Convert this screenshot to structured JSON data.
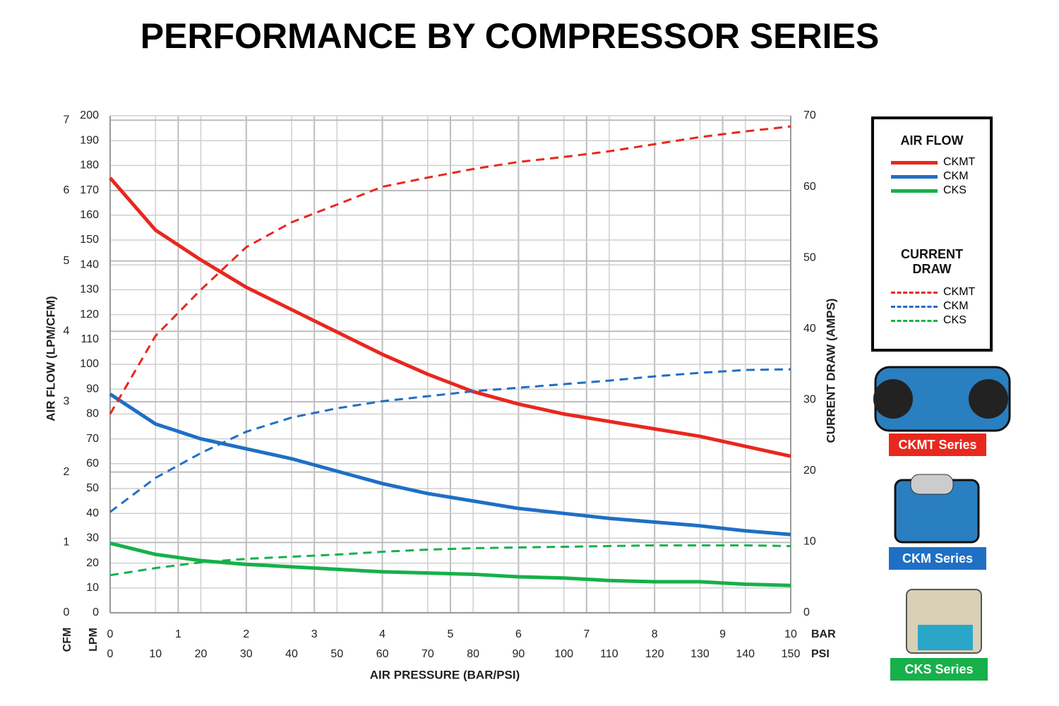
{
  "chart_data": {
    "type": "line",
    "title": "PERFORMANCE BY COMPRESSOR SERIES",
    "y_label": "AIR FLOW (LPM/CFM)",
    "y2_label": "CURRENT DRAW (AMPS)",
    "x_label": "AIR PRESSURE (BAR/PSI)",
    "axis_units": {
      "cfm": "CFM",
      "lpm": "LPM",
      "bar": "BAR",
      "psi": "PSI"
    },
    "x": [
      0,
      10,
      20,
      30,
      40,
      50,
      60,
      70,
      80,
      90,
      100,
      110,
      120,
      130,
      140,
      150
    ],
    "xlim": [
      0,
      150
    ],
    "xticks": [
      0,
      10,
      20,
      30,
      40,
      50,
      60,
      70,
      80,
      90,
      100,
      110,
      120,
      130,
      140,
      150
    ],
    "x2lim": [
      0,
      10
    ],
    "x2ticks": [
      0,
      1,
      2,
      3,
      4,
      5,
      6,
      7,
      8,
      9,
      10
    ],
    "ylim": [
      0,
      200
    ],
    "yticks": [
      0,
      10,
      20,
      30,
      40,
      50,
      60,
      70,
      80,
      90,
      100,
      110,
      120,
      130,
      140,
      150,
      160,
      170,
      180,
      190,
      200
    ],
    "cfm_lim": [
      0,
      7.063
    ],
    "cfm_ticks": [
      0,
      1,
      2,
      3,
      4,
      5,
      6,
      7
    ],
    "y2lim": [
      0,
      70
    ],
    "y2ticks": [
      0,
      10,
      20,
      30,
      40,
      50,
      60,
      70
    ],
    "grid": true,
    "legend": {
      "air_flow_title": "AIR FLOW",
      "current_title": "CURRENT DRAW"
    },
    "series": [
      {
        "name": "CKMT",
        "color": "#e8281e",
        "line_style": "solid",
        "axis": "y",
        "values": [
          175,
          154,
          142,
          131,
          122,
          113,
          104,
          96,
          89,
          84,
          80,
          77,
          74,
          71,
          67,
          63
        ]
      },
      {
        "name": "CKM",
        "color": "#1f6fc4",
        "line_style": "solid",
        "axis": "y",
        "values": [
          88,
          76,
          70,
          66,
          62,
          57,
          52,
          48,
          45,
          42,
          40,
          38,
          36.5,
          35,
          33,
          31.5
        ]
      },
      {
        "name": "CKS",
        "color": "#17b04a",
        "line_style": "solid",
        "axis": "y",
        "values": [
          28,
          23.5,
          21,
          19.5,
          18.5,
          17.5,
          16.5,
          16,
          15.5,
          14.5,
          14,
          13,
          12.5,
          12.5,
          11.5,
          11
        ]
      },
      {
        "name": "CKMT",
        "color": "#e8281e",
        "line_style": "dashed",
        "axis": "y2",
        "values": [
          28,
          39,
          45.5,
          51.5,
          55,
          57.5,
          60,
          61.3,
          62.5,
          63.5,
          64.2,
          65,
          66,
          67,
          67.8,
          68.5
        ]
      },
      {
        "name": "CKM",
        "color": "#1f6fc4",
        "line_style": "dashed",
        "axis": "y2",
        "values": [
          14.2,
          19,
          22.5,
          25.5,
          27.5,
          28.8,
          29.8,
          30.5,
          31.2,
          31.7,
          32.2,
          32.7,
          33.3,
          33.8,
          34.2,
          34.3
        ]
      },
      {
        "name": "CKS",
        "color": "#17b04a",
        "line_style": "dashed",
        "axis": "y2",
        "values": [
          5.3,
          6.3,
          7.1,
          7.6,
          7.9,
          8.2,
          8.6,
          8.9,
          9.1,
          9.2,
          9.3,
          9.4,
          9.5,
          9.5,
          9.5,
          9.4
        ]
      }
    ]
  },
  "products": [
    {
      "label": "CKMT Series",
      "color": "#e8281e"
    },
    {
      "label": "CKM Series",
      "color": "#1f6fc4"
    },
    {
      "label": "CKS Series",
      "color": "#17b04a"
    }
  ]
}
